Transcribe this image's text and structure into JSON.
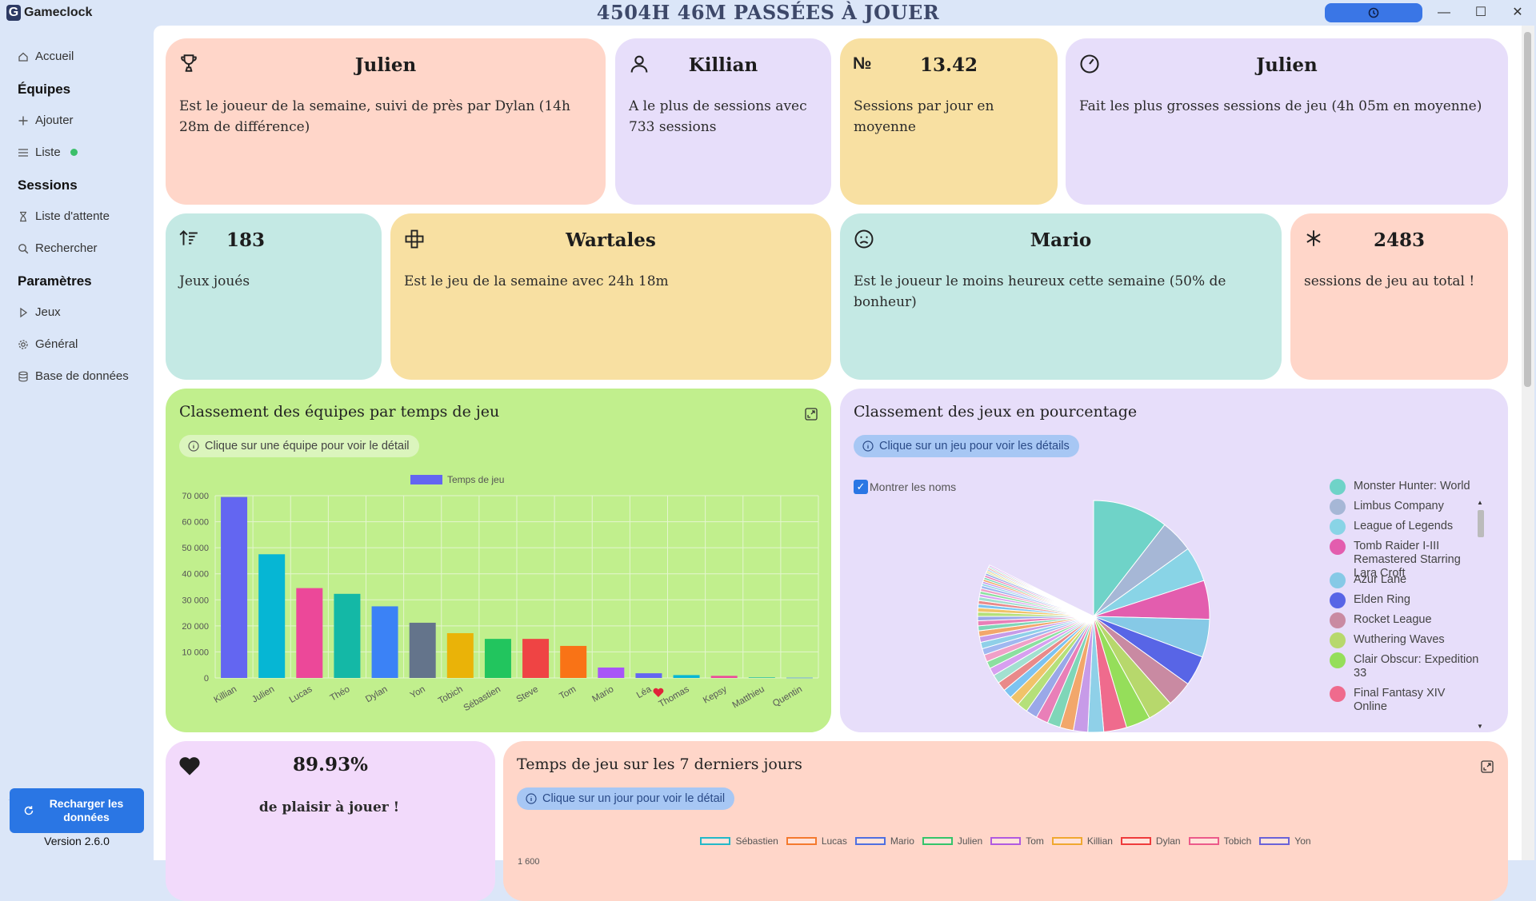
{
  "app": {
    "name": "Gameclock",
    "title": "4504H 46M PASSÉES À JOUER",
    "timer_icon": "clock-icon"
  },
  "sidebar": {
    "accueil": "Accueil",
    "equipes_header": "Équipes",
    "ajouter": "Ajouter",
    "liste": "Liste",
    "sessions_header": "Sessions",
    "liste_attente": "Liste d'attente",
    "rechercher": "Rechercher",
    "parametres_header": "Paramètres",
    "jeux": "Jeux",
    "general": "Général",
    "base": "Base de données",
    "reload_label": "Recharger les données",
    "version": "Version 2.6.0"
  },
  "stats": {
    "player_week": {
      "value": "Julien",
      "desc": "Est le joueur de la semaine, suivi de près par Dylan (14h 28m de différence)"
    },
    "most_sessions": {
      "value": "Killian",
      "desc": "A le plus de sessions avec 733 sessions"
    },
    "sessions_per_day": {
      "value": "13.42",
      "desc": "Sessions par jour en moyenne",
      "icon_text": "№"
    },
    "biggest_sessions": {
      "value": "Julien",
      "desc": "Fait les plus grosses sessions de jeu (4h 05m en moyenne)"
    },
    "games_played": {
      "value": "183",
      "desc": "Jeux joués"
    },
    "game_week": {
      "value": "Wartales",
      "desc": "Est le jeu de la semaine avec 24h 18m"
    },
    "least_happy": {
      "value": "Mario",
      "desc": "Est le joueur le moins heureux cette semaine (50% de bonheur)"
    },
    "total_sessions": {
      "value": "2483",
      "desc": "sessions de jeu au total !"
    },
    "pleasure": {
      "value": "89.93%",
      "desc": "de plaisir à jouer !"
    }
  },
  "team_chart": {
    "title": "Classement des équipes par temps de jeu",
    "hint": "Clique sur une équipe pour voir le détail"
  },
  "games_chart": {
    "title": "Classement des jeux en pourcentage",
    "hint": "Clique sur un jeu pour voir les détails",
    "checkbox_label": "Montrer les noms",
    "legend": [
      {
        "name": "Monster Hunter: World",
        "color": "#6fd3c8"
      },
      {
        "name": "Limbus Company",
        "color": "#a6b7d6"
      },
      {
        "name": "League of Legends",
        "color": "#89d4e6"
      },
      {
        "name": "Tomb Raider I-III Remastered Starring Lara Croft",
        "color": "#e35dae"
      },
      {
        "name": "Azur Lane",
        "color": "#86c9e6"
      },
      {
        "name": "Elden Ring",
        "color": "#5865e6"
      },
      {
        "name": "Rocket League",
        "color": "#c98aa2"
      },
      {
        "name": "Wuthering Waves",
        "color": "#b7d86c"
      },
      {
        "name": "Clair Obscur: Expedition 33",
        "color": "#95de5a"
      },
      {
        "name": "Final Fantasy XIV Online",
        "color": "#ef6b8d"
      }
    ]
  },
  "week_chart": {
    "title": "Temps de jeu sur les 7 derniers jours",
    "hint": "Clique sur un jour pour voir le détail",
    "first_tick": "1 600",
    "legend": [
      {
        "name": "Sébastien",
        "color": "#22b8c8"
      },
      {
        "name": "Lucas",
        "color": "#f47a2e"
      },
      {
        "name": "Mario",
        "color": "#4f6fe0"
      },
      {
        "name": "Julien",
        "color": "#34c46a"
      },
      {
        "name": "Tom",
        "color": "#b05ae0"
      },
      {
        "name": "Killian",
        "color": "#f0a830"
      },
      {
        "name": "Dylan",
        "color": "#ef3b3b"
      },
      {
        "name": "Tobich",
        "color": "#ec5a8a"
      },
      {
        "name": "Yon",
        "color": "#6a62d8"
      }
    ]
  },
  "chart_data": [
    {
      "type": "bar",
      "title": "Classement des équipes par temps de jeu",
      "legend": "Temps de jeu",
      "categories": [
        "Killian",
        "Julien",
        "Lucas",
        "Théo",
        "Dylan",
        "Yon",
        "Tobich",
        "Sébastien",
        "Steve",
        "Tom",
        "Mario",
        "Léa",
        "Thomas",
        "Kepsy",
        "Matthieu",
        "Quentin"
      ],
      "values": [
        69500,
        47500,
        34500,
        32300,
        27500,
        21200,
        17200,
        15000,
        15000,
        12300,
        4000,
        1800,
        1100,
        800,
        200,
        100
      ],
      "colors": [
        "#6366f1",
        "#06b6d4",
        "#ec4899",
        "#14b8a6",
        "#3b82f6",
        "#64748b",
        "#eab308",
        "#22c55e",
        "#ef4444",
        "#f97316",
        "#a855f7",
        "#6366f1",
        "#06b6d4",
        "#ec4899",
        "#14b8a6",
        "#3b82f6"
      ],
      "yticks": [
        "70 000",
        "60 000",
        "50 000",
        "40 000",
        "30 000",
        "20 000",
        "10 000",
        "0"
      ],
      "ylim": [
        0,
        70000
      ]
    },
    {
      "type": "pie",
      "title": "Classement des jeux en pourcentage",
      "labels": [
        "Monster Hunter: World",
        "Limbus Company",
        "League of Legends",
        "Tomb Raider I-III Remastered Starring Lara Croft",
        "Azur Lane",
        "Elden Ring",
        "Rocket League",
        "Wuthering Waves",
        "Clair Obscur: Expedition 33",
        "Final Fantasy XIV Online"
      ],
      "values": [
        10.5,
        4.6,
        4.9,
        5.4,
        5.3,
        4.2,
        3.6,
        3.5,
        3.4,
        3.2
      ],
      "colors": [
        "#6fd3c8",
        "#a6b7d6",
        "#89d4e6",
        "#e35dae",
        "#86c9e6",
        "#5865e6",
        "#c98aa2",
        "#b7d86c",
        "#95de5a",
        "#ef6b8d"
      ]
    }
  ]
}
